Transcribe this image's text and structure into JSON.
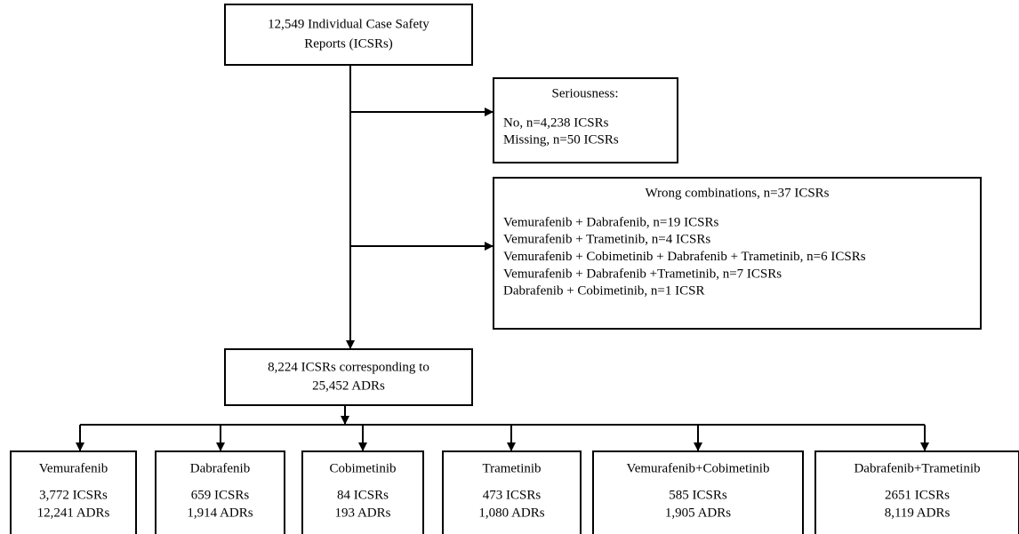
{
  "top": {
    "lines": [
      "12,549 Individual Case Safety",
      "Reports (ICSRs)"
    ]
  },
  "seriousness": {
    "title": "Seriousness:",
    "lines": [
      "No, n=4,238 ICSRs",
      "Missing, n=50 ICSRs"
    ]
  },
  "wrong": {
    "title": "Wrong combinations, n=37 ICSRs",
    "lines": [
      "Vemurafenib + Dabrafenib, n=19 ICSRs",
      "Vemurafenib + Trametinib, n=4 ICSRs",
      "Vemurafenib + Cobimetinib + Dabrafenib + Trametinib, n=6 ICSRs",
      "Vemurafenib + Dabrafenib +Trametinib, n=7 ICSRs",
      "Dabrafenib + Cobimetinib, n=1 ICSR"
    ]
  },
  "middle": {
    "lines": [
      "8,224 ICSRs corresponding to",
      "25,452 ADRs"
    ]
  },
  "groups": [
    {
      "name": "Vemurafenib",
      "icsrs": "3,772 ICSRs",
      "adrs": "12,241 ADRs"
    },
    {
      "name": "Dabrafenib",
      "icsrs": "659 ICSRs",
      "adrs": "1,914 ADRs"
    },
    {
      "name": "Cobimetinib",
      "icsrs": "84 ICSRs",
      "adrs": "193 ADRs"
    },
    {
      "name": "Trametinib",
      "icsrs": "473 ICSRs",
      "adrs": "1,080 ADRs"
    },
    {
      "name": "Vemurafenib+Cobimetinib",
      "icsrs": "585 ICSRs",
      "adrs": "1,905 ADRs"
    },
    {
      "name": "Dabrafenib+Trametinib",
      "icsrs": "2651 ICSRs",
      "adrs": "8,119 ADRs"
    }
  ]
}
